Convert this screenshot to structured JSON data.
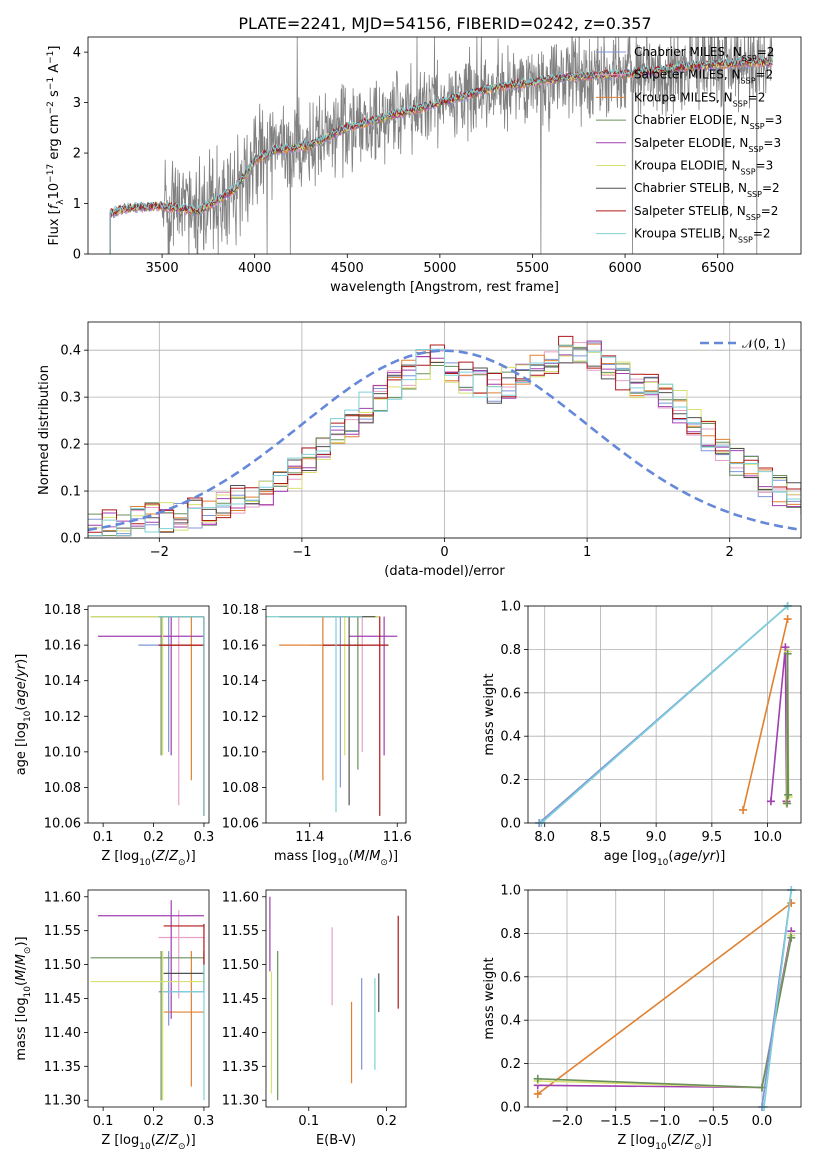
{
  "figure": {
    "title": "PLATE=2241, MJD=54156, FIBERID=0242, z=0.357"
  },
  "model_colors": {
    "Chabrier MILES": "#7F95D9",
    "Salpeter MILES": "#E6A0C8",
    "Kroupa MILES": "#E08030",
    "Chabrier ELODIE": "#6A8F5A",
    "Salpeter ELODIE": "#A040B0",
    "Kroupa ELODIE": "#D8E070",
    "Chabrier STELIB": "#505050",
    "Salpeter STELIB": "#B01818",
    "Kroupa STELIB": "#7FD0D8"
  },
  "chart_data": [
    {
      "id": "spectrum",
      "type": "line",
      "xlabel": "wavelength [Angstrom, rest frame]",
      "ylabel": "Flux [f_λ 10^-17 erg cm^-2 s^-1 A^-1]",
      "xlim": [
        3100,
        6950
      ],
      "ylim": [
        0,
        4.3
      ],
      "xticks": [
        3500,
        4000,
        4500,
        5000,
        5500,
        6000,
        6500
      ],
      "yticks": [
        0,
        1,
        2,
        3,
        4
      ],
      "data_color": "#808080",
      "continuum_x": [
        3220,
        3300,
        3500,
        3700,
        3900,
        4000,
        4100,
        4300,
        4500,
        4700,
        4900,
        5100,
        5300,
        5500,
        5700,
        5900,
        6100,
        6300,
        6500,
        6700,
        6800
      ],
      "continuum_y": [
        0.8,
        0.9,
        0.95,
        0.85,
        1.3,
        1.85,
        2.05,
        2.15,
        2.5,
        2.7,
        2.9,
        3.1,
        3.3,
        3.4,
        3.5,
        3.55,
        3.6,
        3.7,
        3.75,
        3.8,
        3.8
      ],
      "legend": [
        {
          "label": "Chabrier MILES, N",
          "sub": "SSP",
          "tail": "=2"
        },
        {
          "label": "Salpeter MILES, N",
          "sub": "SSP",
          "tail": "=2"
        },
        {
          "label": "Kroupa MILES, N",
          "sub": "SSP",
          "tail": "=2"
        },
        {
          "label": "Chabrier ELODIE, N",
          "sub": "SSP",
          "tail": "=3"
        },
        {
          "label": "Salpeter ELODIE, N",
          "sub": "SSP",
          "tail": "=3"
        },
        {
          "label": "Kroupa ELODIE, N",
          "sub": "SSP",
          "tail": "=3"
        },
        {
          "label": "Chabrier STELIB, N",
          "sub": "SSP",
          "tail": "=2"
        },
        {
          "label": "Salpeter STELIB, N",
          "sub": "SSP",
          "tail": "=2"
        },
        {
          "label": "Kroupa STELIB, N",
          "sub": "SSP",
          "tail": "=2"
        }
      ],
      "grid": false
    },
    {
      "id": "residuals",
      "type": "line",
      "xlabel": "(data-model)/error",
      "ylabel": "Normed distribution",
      "xlim": [
        -2.5,
        2.5
      ],
      "ylim": [
        0,
        0.46
      ],
      "xticks": [
        -2,
        -1,
        0,
        1,
        2
      ],
      "yticks": [
        0.0,
        0.1,
        0.2,
        0.3,
        0.4
      ],
      "grid": true,
      "legend": {
        "label": "𝒩(0, 1)",
        "placement": "top-right"
      },
      "bin_edges_start": -2.5,
      "bin_width": 0.1,
      "base_profile": [
        0.02,
        0.025,
        0.03,
        0.035,
        0.04,
        0.045,
        0.05,
        0.055,
        0.06,
        0.07,
        0.08,
        0.09,
        0.1,
        0.12,
        0.14,
        0.16,
        0.19,
        0.22,
        0.25,
        0.28,
        0.3,
        0.33,
        0.35,
        0.37,
        0.38,
        0.36,
        0.34,
        0.33,
        0.32,
        0.33,
        0.34,
        0.36,
        0.38,
        0.4,
        0.4,
        0.39,
        0.36,
        0.34,
        0.33,
        0.32,
        0.3,
        0.28,
        0.25,
        0.22,
        0.19,
        0.16,
        0.14,
        0.12,
        0.1,
        0.09,
        0.08,
        0.07,
        0.06,
        0.05,
        0.05
      ]
    },
    {
      "id": "age-vs-Z",
      "type": "scatter",
      "xlabel": "Z [log10(Z/Z⊙)]",
      "ylabel": "age  [log10(age/yr)]",
      "xlim": [
        0.07,
        0.31
      ],
      "ylim": [
        10.06,
        10.182
      ],
      "xticks": [
        0.1,
        0.2,
        0.3
      ],
      "yticks": [
        10.06,
        10.08,
        10.1,
        10.12,
        10.14,
        10.16,
        10.18
      ],
      "grid": false,
      "points": [
        {
          "model": "Chabrier MILES",
          "x": 0.23,
          "y": 10.16,
          "xerr": [
            0.17,
            0.3
          ],
          "yerr": [
            10.1,
            10.176
          ]
        },
        {
          "model": "Salpeter MILES",
          "x": 0.25,
          "y": 10.16,
          "xerr": [
            0.21,
            0.3
          ],
          "yerr": [
            10.07,
            10.176
          ]
        },
        {
          "model": "Kroupa MILES",
          "x": 0.275,
          "y": 10.16,
          "xerr": [
            0.21,
            0.3
          ],
          "yerr": [
            10.084,
            10.176
          ]
        },
        {
          "model": "Chabrier ELODIE",
          "x": 0.215,
          "y": 10.176,
          "xerr": [
            0.075,
            0.3
          ],
          "yerr": [
            10.098,
            10.176
          ]
        },
        {
          "model": "Salpeter ELODIE",
          "x": 0.235,
          "y": 10.165,
          "xerr": [
            0.09,
            0.3
          ],
          "yerr": [
            10.098,
            10.176
          ]
        },
        {
          "model": "Kroupa ELODIE",
          "x": 0.218,
          "y": 10.176,
          "xerr": [
            0.075,
            0.3
          ],
          "yerr": [
            10.098,
            10.176
          ]
        },
        {
          "model": "Chabrier STELIB",
          "x": 0.3,
          "y": 10.176,
          "xerr": [
            0.21,
            0.3
          ],
          "yerr": [
            10.064,
            10.176
          ]
        },
        {
          "model": "Salpeter STELIB",
          "x": 0.3,
          "y": 10.16,
          "xerr": [
            0.21,
            0.3
          ],
          "yerr": [
            10.064,
            10.176
          ]
        },
        {
          "model": "Kroupa STELIB",
          "x": 0.3,
          "y": 10.176,
          "xerr": [
            0.21,
            0.3
          ],
          "yerr": [
            10.064,
            10.176
          ]
        }
      ]
    },
    {
      "id": "age-vs-mass",
      "type": "scatter",
      "xlabel": "mass [log10(M/M⊙)]",
      "ylabel": "",
      "xlim": [
        11.3,
        11.62
      ],
      "ylim": [
        10.06,
        10.182
      ],
      "xticks": [
        11.4,
        11.6
      ],
      "yticks": [
        10.06,
        10.08,
        10.1,
        10.12,
        10.14,
        10.16,
        10.18
      ],
      "grid": false,
      "points": [
        {
          "model": "Chabrier MILES",
          "x": 11.47,
          "y": 10.16,
          "xerr": [
            11.4,
            11.52
          ],
          "yerr": [
            10.08,
            10.176
          ]
        },
        {
          "model": "Salpeter MILES",
          "x": 11.52,
          "y": 10.16,
          "xerr": [
            11.44,
            11.58
          ],
          "yerr": [
            10.1,
            10.176
          ]
        },
        {
          "model": "Kroupa MILES",
          "x": 11.43,
          "y": 10.16,
          "xerr": [
            11.33,
            11.52
          ],
          "yerr": [
            10.084,
            10.176
          ]
        },
        {
          "model": "Chabrier ELODIE",
          "x": 11.51,
          "y": 10.176,
          "xerr": [
            11.33,
            11.56
          ],
          "yerr": [
            10.09,
            10.176
          ]
        },
        {
          "model": "Salpeter ELODIE",
          "x": 11.57,
          "y": 10.165,
          "xerr": [
            11.49,
            11.6
          ],
          "yerr": [
            10.098,
            10.176
          ]
        },
        {
          "model": "Kroupa ELODIE",
          "x": 11.48,
          "y": 10.176,
          "xerr": [
            11.3,
            11.56
          ],
          "yerr": [
            10.098,
            10.176
          ]
        },
        {
          "model": "Chabrier STELIB",
          "x": 11.49,
          "y": 10.176,
          "xerr": [
            11.33,
            11.55
          ],
          "yerr": [
            10.07,
            10.176
          ]
        },
        {
          "model": "Salpeter STELIB",
          "x": 11.56,
          "y": 10.16,
          "xerr": [
            11.43,
            11.58
          ],
          "yerr": [
            10.064,
            10.176
          ]
        },
        {
          "model": "Kroupa STELIB",
          "x": 11.46,
          "y": 10.176,
          "xerr": [
            11.3,
            11.52
          ],
          "yerr": [
            10.066,
            10.176
          ]
        }
      ]
    },
    {
      "id": "massweight-vs-age",
      "type": "line",
      "xlabel": "age  [log10(age/yr)]",
      "ylabel": "mass weight",
      "xlim": [
        7.85,
        10.3
      ],
      "ylim": [
        0,
        1
      ],
      "xticks": [
        8.0,
        8.5,
        9.0,
        9.5,
        10.0
      ],
      "yticks": [
        0.0,
        0.2,
        0.4,
        0.6,
        0.8,
        1.0
      ],
      "grid": true,
      "series": [
        {
          "model": "Chabrier MILES",
          "x": [
            7.95,
            10.18
          ],
          "y": [
            0.0,
            1.0
          ]
        },
        {
          "model": "Kroupa STELIB",
          "x": [
            7.97,
            10.18
          ],
          "y": [
            0.0,
            1.0
          ]
        },
        {
          "model": "Kroupa MILES",
          "x": [
            9.78,
            10.18
          ],
          "y": [
            0.06,
            0.94
          ]
        },
        {
          "model": "Salpeter ELODIE",
          "x": [
            10.03,
            10.16,
            10.17
          ],
          "y": [
            0.1,
            0.81,
            0.1
          ]
        },
        {
          "model": "Kroupa ELODIE",
          "x": [
            10.17,
            10.18,
            10.19
          ],
          "y": [
            0.09,
            0.79,
            0.12
          ]
        },
        {
          "model": "Chabrier ELODIE",
          "x": [
            10.175,
            10.18,
            10.185
          ],
          "y": [
            0.09,
            0.78,
            0.13
          ]
        }
      ]
    },
    {
      "id": "mass-vs-Z",
      "type": "scatter",
      "xlabel": "Z [log10(Z/Z⊙)]",
      "ylabel": "mass [log10(M/M⊙)]",
      "xlim": [
        0.07,
        0.31
      ],
      "ylim": [
        11.29,
        11.61
      ],
      "xticks": [
        0.1,
        0.2,
        0.3
      ],
      "yticks": [
        11.3,
        11.35,
        11.4,
        11.45,
        11.5,
        11.55,
        11.6
      ],
      "grid": false,
      "points": [
        {
          "model": "Chabrier MILES",
          "x": 0.23,
          "y": 11.46,
          "xerr": [
            0.21,
            0.3
          ],
          "yerr": [
            11.41,
            11.52
          ]
        },
        {
          "model": "Salpeter MILES",
          "x": 0.25,
          "y": 11.54,
          "xerr": [
            0.21,
            0.3
          ],
          "yerr": [
            11.45,
            11.58
          ]
        },
        {
          "model": "Kroupa MILES",
          "x": 0.275,
          "y": 11.43,
          "xerr": [
            0.22,
            0.3
          ],
          "yerr": [
            11.32,
            11.52
          ]
        },
        {
          "model": "Chabrier ELODIE",
          "x": 0.215,
          "y": 11.51,
          "xerr": [
            0.075,
            0.3
          ],
          "yerr": [
            11.3,
            11.52
          ]
        },
        {
          "model": "Salpeter ELODIE",
          "x": 0.235,
          "y": 11.572,
          "xerr": [
            0.09,
            0.3
          ],
          "yerr": [
            11.42,
            11.595
          ]
        },
        {
          "model": "Kroupa ELODIE",
          "x": 0.218,
          "y": 11.475,
          "xerr": [
            0.075,
            0.3
          ],
          "yerr": [
            11.3,
            11.52
          ]
        },
        {
          "model": "Chabrier STELIB",
          "x": 0.3,
          "y": 11.487,
          "xerr": [
            0.22,
            0.3
          ],
          "yerr": [
            11.46,
            11.52
          ]
        },
        {
          "model": "Salpeter STELIB",
          "x": 0.3,
          "y": 11.557,
          "xerr": [
            0.22,
            0.3
          ],
          "yerr": [
            11.5,
            11.56
          ]
        },
        {
          "model": "Kroupa STELIB",
          "x": 0.3,
          "y": 11.46,
          "xerr": [
            0.22,
            0.3
          ],
          "yerr": [
            11.3,
            11.5
          ]
        }
      ]
    },
    {
      "id": "mass-vs-EBV",
      "type": "scatter",
      "xlabel": "E(B-V)",
      "ylabel": "",
      "xlim": [
        0.045,
        0.225
      ],
      "ylim": [
        11.29,
        11.61
      ],
      "xticks": [
        0.1,
        0.2
      ],
      "yticks": [
        11.3,
        11.35,
        11.4,
        11.45,
        11.5,
        11.55,
        11.6
      ],
      "grid": false,
      "bars": [
        {
          "model": "Salpeter ELODIE",
          "x": 0.05,
          "yerr": [
            11.49,
            11.6
          ]
        },
        {
          "model": "Kroupa ELODIE",
          "x": 0.052,
          "yerr": [
            11.31,
            11.49
          ]
        },
        {
          "model": "Chabrier ELODIE",
          "x": 0.06,
          "yerr": [
            11.3,
            11.52
          ]
        },
        {
          "model": "Salpeter MILES",
          "x": 0.13,
          "yerr": [
            11.44,
            11.555
          ]
        },
        {
          "model": "Kroupa MILES",
          "x": 0.155,
          "yerr": [
            11.325,
            11.445
          ]
        },
        {
          "model": "Chabrier MILES",
          "x": 0.168,
          "yerr": [
            11.345,
            11.48
          ]
        },
        {
          "model": "Kroupa STELIB",
          "x": 0.185,
          "yerr": [
            11.345,
            11.48
          ]
        },
        {
          "model": "Chabrier STELIB",
          "x": 0.19,
          "yerr": [
            11.43,
            11.487
          ]
        },
        {
          "model": "Salpeter STELIB",
          "x": 0.215,
          "yerr": [
            11.435,
            11.572
          ]
        }
      ]
    },
    {
      "id": "massweight-vs-Z",
      "type": "line",
      "xlabel": "Z [log10(Z/Z⊙)]",
      "ylabel": "mass weight",
      "xlim": [
        -2.4,
        0.4
      ],
      "ylim": [
        0,
        1
      ],
      "xticks": [
        -2.0,
        -1.5,
        -1.0,
        -0.5,
        0.0
      ],
      "yticks": [
        0.0,
        0.2,
        0.4,
        0.6,
        0.8,
        1.0
      ],
      "grid": true,
      "series": [
        {
          "model": "Kroupa MILES",
          "x": [
            -2.3,
            0.3
          ],
          "y": [
            0.06,
            0.94
          ]
        },
        {
          "model": "Salpeter ELODIE",
          "x": [
            -2.3,
            0.0,
            0.3
          ],
          "y": [
            0.1,
            0.09,
            0.81
          ]
        },
        {
          "model": "Kroupa ELODIE",
          "x": [
            -2.3,
            0.0,
            0.3
          ],
          "y": [
            0.12,
            0.09,
            0.79
          ]
        },
        {
          "model": "Chabrier ELODIE",
          "x": [
            -2.3,
            0.0,
            0.3
          ],
          "y": [
            0.13,
            0.09,
            0.78
          ]
        },
        {
          "model": "Chabrier MILES",
          "x": [
            0.0,
            0.3
          ],
          "y": [
            0.0,
            1.0
          ]
        },
        {
          "model": "Kroupa STELIB",
          "x": [
            0.02,
            0.3
          ],
          "y": [
            0.0,
            1.0
          ]
        }
      ]
    }
  ]
}
